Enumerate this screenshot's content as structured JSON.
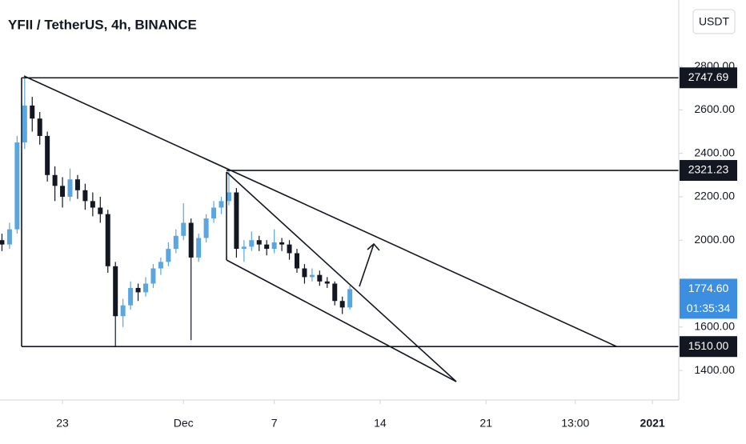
{
  "chart_data": {
    "type": "candlestick",
    "title": "YFII / TetherUS, 4h, BINANCE",
    "currency_button": "USDT",
    "x": [
      19.0,
      19.5,
      20.0,
      20.5,
      21.0,
      21.5,
      22.0,
      22.5,
      23.0,
      23.5,
      24.0,
      24.5,
      25.0,
      25.5,
      26.0,
      26.5,
      27.0,
      27.5,
      28.0,
      28.5,
      29.0,
      29.5,
      30.0,
      30.5,
      31.0,
      31.5,
      32.0,
      32.5,
      33.0,
      33.5,
      34.0,
      34.5,
      35.0,
      35.5,
      36.0,
      36.5,
      37.0,
      37.5,
      38.0,
      38.5,
      39.0,
      39.5,
      40.0,
      40.5,
      41.0,
      41.5,
      42.0
    ],
    "open": [
      2000,
      1980,
      2050,
      2450,
      2620,
      2560,
      2480,
      2300,
      2250,
      2200,
      2280,
      2230,
      2180,
      2150,
      2120,
      1880,
      1650,
      1700,
      1780,
      1760,
      1800,
      1870,
      1900,
      1960,
      2020,
      2080,
      1920,
      2010,
      2100,
      2150,
      2180,
      2220,
      1960,
      1970,
      2000,
      1980,
      1960,
      1990,
      1980,
      1940,
      1870,
      1830,
      1840,
      1810,
      1800,
      1720,
      1690
    ],
    "high": [
      2030,
      2080,
      2480,
      2747.69,
      2660,
      2590,
      2500,
      2340,
      2290,
      2330,
      2300,
      2260,
      2220,
      2200,
      2140,
      1900,
      1730,
      1810,
      1800,
      1830,
      1890,
      1920,
      1990,
      2050,
      2170,
      2100,
      2030,
      2120,
      2180,
      2200,
      2321.23,
      2240,
      2000,
      2040,
      2020,
      2000,
      2050,
      2010,
      2000,
      1960,
      1890,
      1870,
      1860,
      1830,
      1810,
      1740,
      1790
    ],
    "low": [
      1950,
      1960,
      2030,
      2420,
      2500,
      2440,
      2270,
      2180,
      2150,
      2180,
      2190,
      2140,
      2110,
      2080,
      1850,
      1510,
      1600,
      1680,
      1720,
      1740,
      1780,
      1840,
      1880,
      1940,
      2000,
      1540,
      1900,
      1990,
      2080,
      2120,
      2160,
      1920,
      1900,
      1950,
      1950,
      1930,
      1940,
      1950,
      1910,
      1850,
      1800,
      1810,
      1790,
      1780,
      1700,
      1660,
      1680
    ],
    "close": [
      1980,
      2050,
      2450,
      2620,
      2560,
      2480,
      2300,
      2250,
      2200,
      2280,
      2230,
      2180,
      2150,
      2120,
      1880,
      1650,
      1700,
      1780,
      1760,
      1800,
      1870,
      1900,
      1960,
      2020,
      2080,
      1920,
      2010,
      2100,
      2150,
      2180,
      2220,
      1960,
      1970,
      2000,
      1980,
      1960,
      1990,
      1980,
      1940,
      1870,
      1830,
      1840,
      1810,
      1800,
      1720,
      1690,
      1774.6
    ],
    "up_color": "#5aa6e0",
    "down_color": "#131722",
    "xlim": [
      18.87,
      63.74
    ],
    "xticks": [
      {
        "value": 23,
        "label": "23"
      },
      {
        "value": 31,
        "label": "Dec"
      },
      {
        "value": 37,
        "label": "7"
      },
      {
        "value": 44,
        "label": "14"
      },
      {
        "value": 51,
        "label": "21"
      },
      {
        "value": 56.9,
        "label": "13:00"
      },
      {
        "value": 62,
        "label": "2021"
      }
    ],
    "ylim": [
      1264,
      3106
    ],
    "yticks": [
      {
        "value": 1400,
        "label": "1400.00"
      },
      {
        "value": 1600,
        "label": "1600.00"
      },
      {
        "value": 1800,
        "label": "1800.00"
      },
      {
        "value": 2000,
        "label": "2000.00"
      },
      {
        "value": 2200,
        "label": "2200.00"
      },
      {
        "value": 2400,
        "label": "2400.00"
      },
      {
        "value": 2600,
        "label": "2600.00"
      },
      {
        "value": 2800,
        "label": "2800.00"
      }
    ],
    "levels": [
      {
        "value": 2747.69,
        "label": "2747.69"
      },
      {
        "value": 2321.23,
        "label": "2321.23"
      },
      {
        "value": 1510,
        "label": "1510.00"
      }
    ],
    "last_price": {
      "value": 1774.6,
      "label": "1774.60"
    },
    "countdown": "01:35:34"
  }
}
